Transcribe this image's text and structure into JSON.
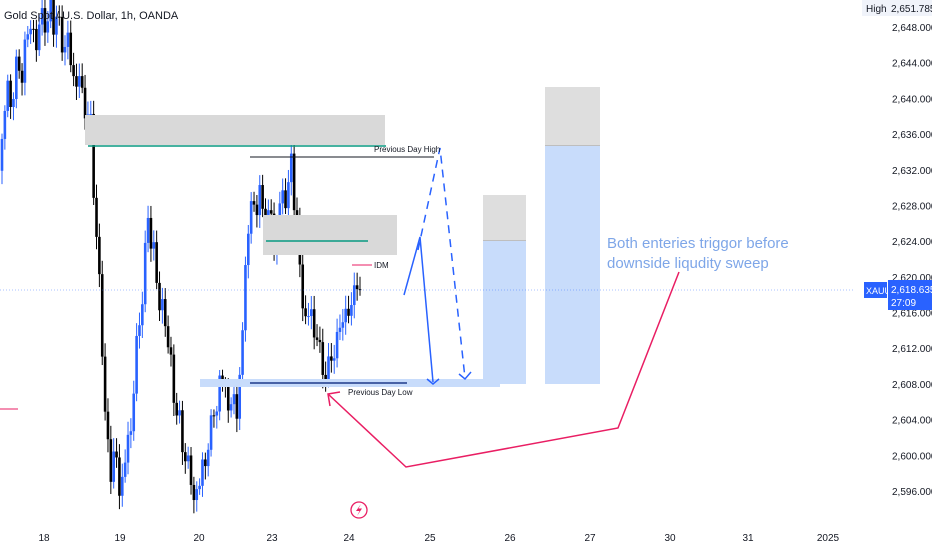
{
  "header": {
    "title": "Gold Spot / U.S. Dollar, 1h, OANDA"
  },
  "chart_data": {
    "type": "candlestick",
    "symbol": "XAUUSD",
    "title": "Gold Spot / U.S. Dollar, 1h, OANDA",
    "ylim": [
      2593,
      2653
    ],
    "y_ticks": [
      2596,
      2600,
      2604,
      2608,
      2612,
      2616,
      2620,
      2624,
      2628,
      2632,
      2636,
      2640,
      2644,
      2648
    ],
    "y_tick_labels": [
      "2,596.000",
      "2,600.000",
      "2,604.000",
      "2,608.000",
      "2,612.000",
      "2,616.000",
      "2,620.000",
      "2,624.000",
      "2,628.000",
      "2,632.000",
      "2,636.000",
      "2,640.000",
      "2,644.000",
      "2,648.000"
    ],
    "x_ticks": [
      "18",
      "19",
      "20",
      "23",
      "24",
      "25",
      "26",
      "27",
      "30",
      "31",
      "2025"
    ],
    "high_label": "High",
    "high_value": "2,651.785",
    "last_symbol": "XAUUSD",
    "last_price": 2618.635,
    "last_price_label": "2,618.635",
    "countdown": "27:09",
    "colors": {
      "up": "#2962ff",
      "down": "#000000",
      "zone": "#d9d9d9",
      "target_zone": "#c8dcfb",
      "green": "#089981",
      "arrow": "#2962ff",
      "pink": "#e91e63",
      "annotation": "#7ea6e8"
    },
    "annotations": {
      "previous_day_high": "Previous Day High",
      "previous_day_low": "Previous Day Low",
      "idm": "IDM",
      "note_line1": "Both enteries triggor before",
      "note_line2": "downside liqudity sweep"
    },
    "levels": {
      "previous_day_high": 2633.6,
      "previous_day_low": 2608.2,
      "upper_green": 2634.9,
      "mid_green": 2623.6,
      "idm": 2619.7
    }
  }
}
